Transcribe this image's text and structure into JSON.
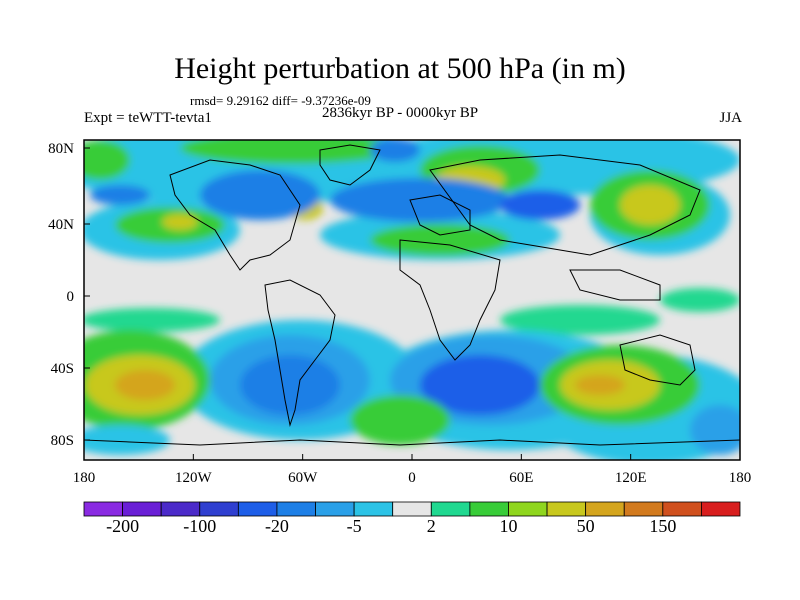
{
  "title": "Height perturbation at 500 hPa (in m)",
  "stats": "rmsd= 9.29162 diff= -9.37236e-09",
  "experiment": "Expt = teWTT-tevta1",
  "period": "2836kyr BP - 0000kyr BP",
  "season": "JJA",
  "map": {
    "lon_ticks": [
      "180",
      "120W",
      "60W",
      "0",
      "60E",
      "120E",
      "180"
    ],
    "lat_ticks": [
      "80N",
      "40N",
      "0",
      "40S",
      "80S"
    ]
  },
  "colorbar": {
    "colors": [
      "#8a2be2",
      "#6a1fd6",
      "#4b2ac9",
      "#2f3fd0",
      "#1e5ee8",
      "#1e7fe6",
      "#2aa0e8",
      "#2cc3e6",
      "#e6e6e6",
      "#20d890",
      "#38cc38",
      "#8fd61e",
      "#c8c81e",
      "#d4a51e",
      "#d27a1e",
      "#d0501e",
      "#d81e1e"
    ],
    "labels": [
      "-200",
      "-100",
      "-20",
      "-5",
      "2",
      "10",
      "50",
      "150"
    ]
  }
}
